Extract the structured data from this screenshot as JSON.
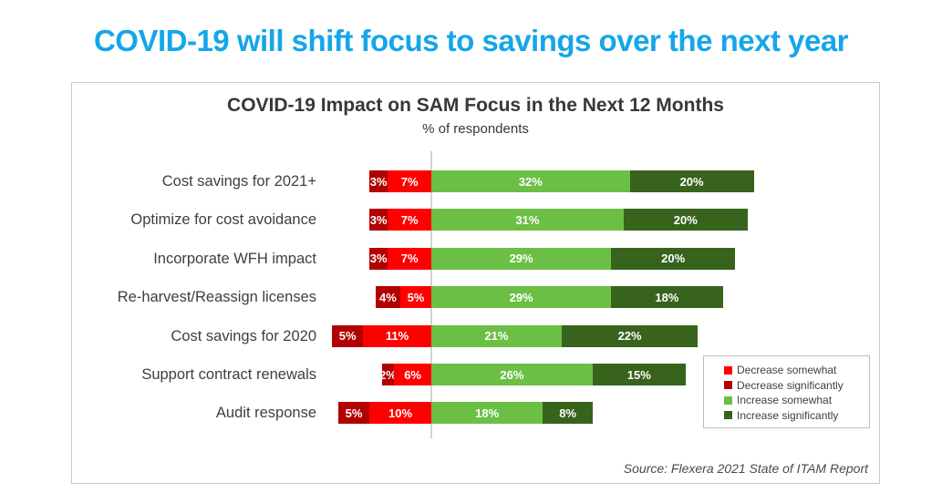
{
  "page": {
    "title": "COVID-19 will shift focus to savings over the next year",
    "title_color": "#15a6e8"
  },
  "chart": {
    "title": "COVID-19 Impact on SAM Focus in the Next 12 Months",
    "subtitle": "% of respondents",
    "source": "Source: Flexera 2021 State of ITAM Report",
    "legend": [
      {
        "label": "Decrease somewhat",
        "color": "#fe0000"
      },
      {
        "label": "Decrease significantly",
        "color": "#b20000"
      },
      {
        "label": "Increase somewhat",
        "color": "#6cbf45"
      },
      {
        "label": "Increase significantly",
        "color": "#38631c"
      }
    ]
  },
  "chart_data": {
    "type": "bar",
    "variant": "horizontal-diverging-stacked",
    "title": "COVID-19 Impact on SAM Focus in the Next 12 Months",
    "subtitle": "% of respondents",
    "unit": "%",
    "categories": [
      "Cost savings for 2021+",
      "Optimize for cost avoidance",
      "Incorporate WFH impact",
      "Re-harvest/Reassign licenses",
      "Cost savings for 2020",
      "Support contract renewals",
      "Audit response"
    ],
    "series": [
      {
        "name": "Decrease significantly",
        "side": "negative",
        "color": "#b20000",
        "values": [
          3,
          3,
          3,
          4,
          5,
          2,
          5
        ]
      },
      {
        "name": "Decrease somewhat",
        "side": "negative",
        "color": "#fe0000",
        "values": [
          7,
          7,
          7,
          5,
          11,
          6,
          10
        ]
      },
      {
        "name": "Increase somewhat",
        "side": "positive",
        "color": "#6cbf45",
        "values": [
          32,
          31,
          29,
          29,
          21,
          26,
          18
        ]
      },
      {
        "name": "Increase significantly",
        "side": "positive",
        "color": "#38631c",
        "values": [
          20,
          20,
          20,
          18,
          22,
          15,
          8
        ]
      }
    ],
    "data_labels": "inside-white-percent",
    "legend_position": "bottom-right-box",
    "grid": false
  }
}
